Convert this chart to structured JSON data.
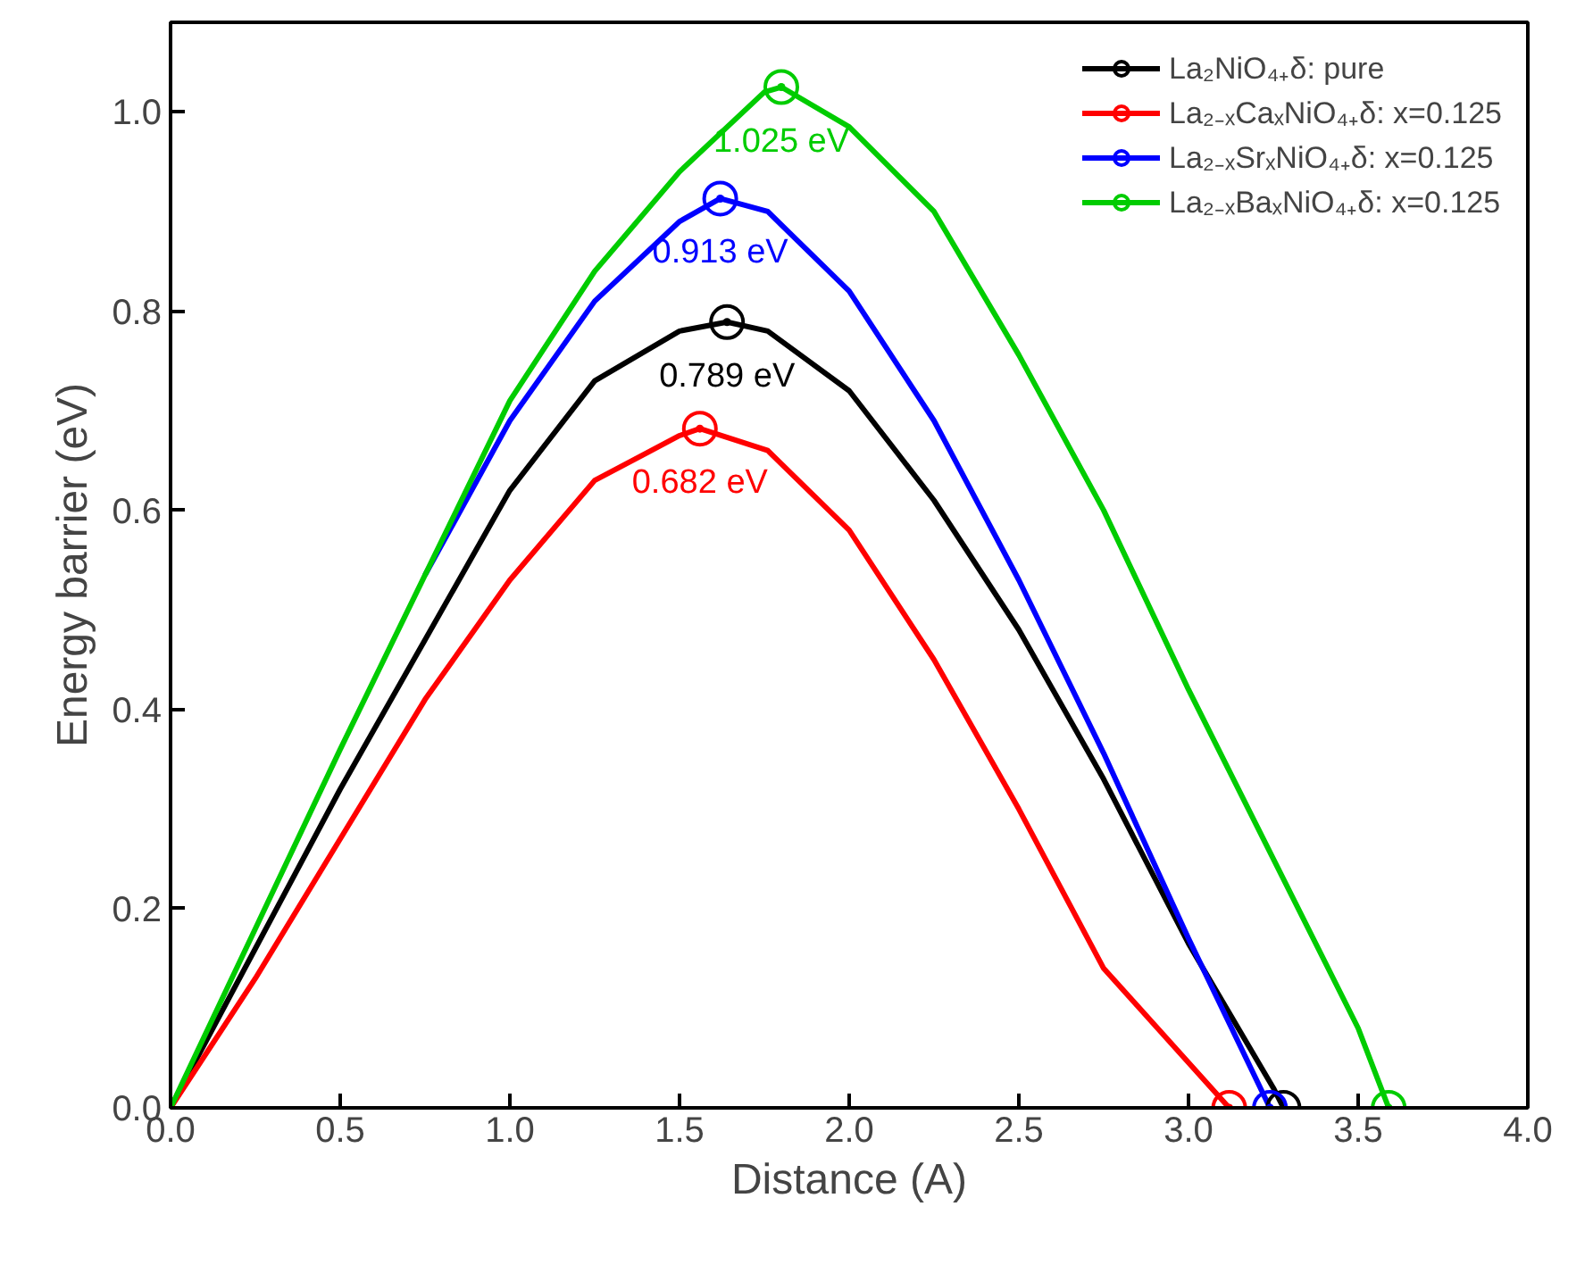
{
  "chart_data": {
    "type": "line",
    "xlabel": "Distance (A)",
    "ylabel": "Energy barrier (eV)",
    "series": [
      {
        "name": "La₂NiO₄₊δ: pure",
        "color": "#000000",
        "x": [
          0,
          0.25,
          0.5,
          0.75,
          1.0,
          1.25,
          1.5,
          1.64,
          1.76,
          2.0,
          2.25,
          2.5,
          2.75,
          3.0,
          3.25,
          3.28
        ],
        "values": [
          0,
          0.16,
          0.32,
          0.47,
          0.62,
          0.73,
          0.78,
          0.789,
          0.78,
          0.72,
          0.61,
          0.48,
          0.33,
          0.165,
          0.02,
          0
        ]
      },
      {
        "name": "La₂₋ₓCaₓNiO₄₊δ: x=0.125",
        "color": "#ff0000",
        "x": [
          0,
          0.25,
          0.5,
          0.75,
          1.0,
          1.25,
          1.5,
          1.56,
          1.76,
          2.0,
          2.25,
          2.5,
          2.75,
          3.12
        ],
        "values": [
          0,
          0.13,
          0.27,
          0.41,
          0.53,
          0.63,
          0.675,
          0.682,
          0.66,
          0.58,
          0.45,
          0.3,
          0.14,
          0
        ]
      },
      {
        "name": "La₂₋ₓSrₓNiO₄₊δ: x=0.125",
        "color": "#0000ff",
        "x": [
          0.75,
          1.0,
          1.25,
          1.5,
          1.62,
          1.76,
          2.0,
          2.25,
          2.5,
          2.75,
          3.0,
          3.24
        ],
        "values": [
          0.535,
          0.69,
          0.81,
          0.89,
          0.913,
          0.9,
          0.82,
          0.69,
          0.53,
          0.356,
          0.17,
          0
        ]
      },
      {
        "name": "La₂₋ₓBaₓNiO₄₊δ: x=0.125",
        "color": "#00cc00",
        "x": [
          0,
          0.25,
          0.5,
          0.75,
          1.0,
          1.25,
          1.5,
          1.75,
          1.8,
          2.0,
          2.25,
          2.5,
          2.75,
          3.0,
          3.25,
          3.5,
          3.59
        ],
        "values": [
          0,
          0.18,
          0.36,
          0.535,
          0.71,
          0.84,
          0.94,
          1.02,
          1.025,
          0.985,
          0.9,
          0.756,
          0.6,
          0.42,
          0.25,
          0.08,
          0
        ]
      },
      {
        "type": "scatter",
        "marker": "circle",
        "color": "#000000",
        "x": [
          1.64,
          3.28
        ],
        "values": [
          0.789,
          0
        ]
      },
      {
        "type": "scatter",
        "marker": "circle",
        "color": "#ff0000",
        "x": [
          1.56,
          3.12
        ],
        "values": [
          0.682,
          0
        ]
      },
      {
        "type": "scatter",
        "marker": "circle",
        "color": "#0000ff",
        "x": [
          1.62,
          3.24
        ],
        "values": [
          0.913,
          0
        ]
      },
      {
        "type": "scatter",
        "marker": "circle",
        "color": "#00cc00",
        "x": [
          1.8,
          3.59
        ],
        "values": [
          1.025,
          0
        ]
      }
    ],
    "annotations": [
      {
        "text": "0.789 eV",
        "x": 1.64,
        "y": 0.789
      },
      {
        "text": "0.682 eV",
        "x": 1.56,
        "y": 0.682
      },
      {
        "text": "0.913 eV",
        "x": 1.62,
        "y": 0.913
      },
      {
        "text": "1.025 eV",
        "x": 1.8,
        "y": 1.025
      }
    ],
    "xlim": [
      0,
      4.0
    ],
    "ylim": [
      0,
      1.09
    ],
    "xticks": [
      {
        "value": 0,
        "label": "0.0"
      },
      {
        "value": 0.5,
        "label": "0.5"
      },
      {
        "value": 1,
        "label": "1.0"
      },
      {
        "value": 1.5,
        "label": "1.5"
      },
      {
        "value": 2,
        "label": "2.0"
      },
      {
        "value": 2.5,
        "label": "2.5"
      },
      {
        "value": 3,
        "label": "3.0"
      },
      {
        "value": 3.5,
        "label": "3.5"
      },
      {
        "value": 4,
        "label": "4.0"
      }
    ],
    "yticks": [
      {
        "value": 0,
        "label": "0.0"
      },
      {
        "value": 0.2,
        "label": "0.2"
      },
      {
        "value": 0.4,
        "label": "0.4"
      },
      {
        "value": 0.6,
        "label": "0.6"
      },
      {
        "value": 0.8,
        "label": "0.8"
      },
      {
        "value": 1,
        "label": "1.0"
      }
    ],
    "grid": false,
    "legend": "top right",
    "line_style": "solid"
  }
}
